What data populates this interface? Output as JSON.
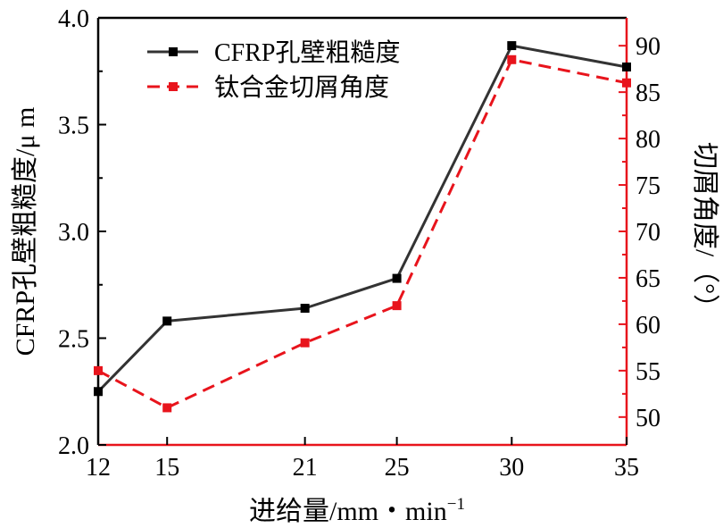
{
  "chart_data": {
    "type": "line",
    "x": [
      12,
      15,
      21,
      25,
      30,
      35
    ],
    "x_tick_labels": [
      "12",
      "15",
      "21",
      "25",
      "30",
      "35"
    ],
    "xlabel": "进给量/mm・min",
    "xlabel_sup": "−1",
    "ylabel_left": "CFRP孔壁粗糙度/μ m",
    "ylabel_right": "切屑角度/（°）",
    "ylim_left": [
      2.0,
      4.0
    ],
    "ylim_right": [
      47,
      93
    ],
    "y_left_ticks": [
      "2.0",
      "2.5",
      "3.0",
      "3.5",
      "4.0"
    ],
    "y_right_ticks": [
      "50",
      "55",
      "60",
      "65",
      "70",
      "75",
      "80",
      "85",
      "90"
    ],
    "legend_position": "top-left",
    "grid": false,
    "series": [
      {
        "name": "CFRP孔壁粗糙度",
        "axis": "left",
        "color": "#333333",
        "style": "solid",
        "values": [
          2.25,
          2.58,
          2.64,
          2.78,
          3.87,
          3.77
        ]
      },
      {
        "name": "钛合金切屑角度",
        "axis": "right",
        "color": "#e8141c",
        "style": "dashed",
        "values": [
          55,
          51,
          58,
          62,
          88.5,
          86
        ]
      }
    ]
  }
}
